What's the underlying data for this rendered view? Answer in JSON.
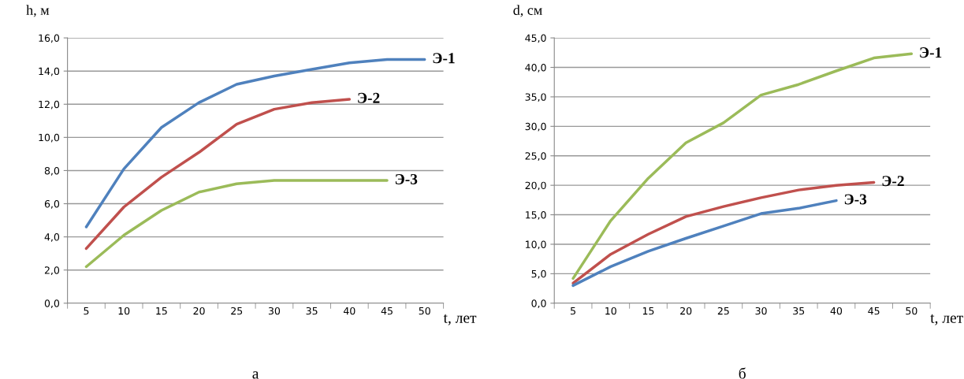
{
  "chart_data": [
    {
      "type": "line",
      "xlabel": "t, лет",
      "ylabel": "h, м",
      "categories": [
        "5",
        "10",
        "15",
        "20",
        "25",
        "30",
        "35",
        "40",
        "45",
        "50"
      ],
      "series": [
        {
          "name": "Э-1",
          "color": "#4f81bd",
          "values": [
            4.6,
            8.1,
            10.6,
            12.1,
            13.2,
            13.7,
            14.1,
            14.5,
            14.7,
            14.7
          ]
        },
        {
          "name": "Э-2",
          "color": "#c0504d",
          "values": [
            3.3,
            5.8,
            7.6,
            9.1,
            10.8,
            11.7,
            12.1,
            12.3,
            null,
            null
          ]
        },
        {
          "name": "Э-3",
          "color": "#9bbb59",
          "values": [
            2.2,
            4.1,
            5.6,
            6.7,
            7.2,
            7.4,
            7.4,
            7.4,
            7.4,
            null
          ]
        }
      ],
      "ylim": [
        0,
        16
      ],
      "yticks": [
        {
          "value": 0,
          "label": "0,0"
        },
        {
          "value": 2,
          "label": "2,0"
        },
        {
          "value": 4,
          "label": "4,0"
        },
        {
          "value": 6,
          "label": "6,0"
        },
        {
          "value": 8,
          "label": "8,0"
        },
        {
          "value": 10,
          "label": "10,0"
        },
        {
          "value": 12,
          "label": "12,0"
        },
        {
          "value": 14,
          "label": "14,0"
        },
        {
          "value": 16,
          "label": "16,0"
        }
      ],
      "grid": "y",
      "legend": false,
      "annotations": [
        "а"
      ]
    },
    {
      "type": "line",
      "xlabel": "t, лет",
      "ylabel": "d, см",
      "categories": [
        "5",
        "10",
        "15",
        "20",
        "25",
        "30",
        "35",
        "40",
        "45",
        "50"
      ],
      "series": [
        {
          "name": "Э-1",
          "color": "#9bbb59",
          "values": [
            4.2,
            14.0,
            21.2,
            27.2,
            30.6,
            35.3,
            37.1,
            39.4,
            41.6,
            42.3
          ]
        },
        {
          "name": "Э-2",
          "color": "#c0504d",
          "values": [
            3.4,
            8.3,
            11.7,
            14.7,
            16.4,
            17.9,
            19.2,
            20.0,
            20.5,
            null
          ]
        },
        {
          "name": "Э-3",
          "color": "#4f81bd",
          "values": [
            3.0,
            6.2,
            8.8,
            11.0,
            13.1,
            15.2,
            16.1,
            17.4,
            null,
            null
          ]
        }
      ],
      "ylim": [
        0,
        45
      ],
      "yticks": [
        {
          "value": 0,
          "label": "0,0"
        },
        {
          "value": 5,
          "label": "5,0"
        },
        {
          "value": 10,
          "label": "10,0"
        },
        {
          "value": 15,
          "label": "15,0"
        },
        {
          "value": 20,
          "label": "20,0"
        },
        {
          "value": 25,
          "label": "25,0"
        },
        {
          "value": 30,
          "label": "30,0"
        },
        {
          "value": 35,
          "label": "35,0"
        },
        {
          "value": 40,
          "label": "40,0"
        },
        {
          "value": 45,
          "label": "45,0"
        }
      ],
      "grid": "y",
      "legend": false,
      "annotations": [
        "б"
      ]
    }
  ]
}
